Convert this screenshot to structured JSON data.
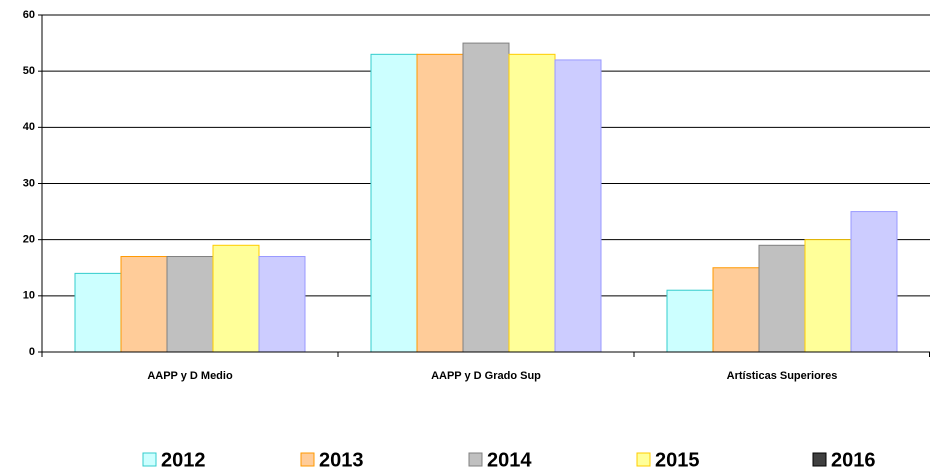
{
  "chart_data": {
    "type": "bar",
    "categories": [
      "AAPP y D Medio",
      "AAPP y D Grado Sup",
      "Artísticas Superiores"
    ],
    "series": [
      {
        "name": "2012",
        "color": "#ccffff",
        "border": "#33cccc",
        "values": [
          14,
          53,
          11
        ]
      },
      {
        "name": "2013",
        "color": "#ffcc99",
        "border": "#ff9900",
        "values": [
          17,
          53,
          15
        ]
      },
      {
        "name": "2014",
        "color": "#c0c0c0",
        "border": "#808080",
        "values": [
          17,
          55,
          19
        ]
      },
      {
        "name": "2015",
        "color": "#ffff99",
        "border": "#ffcc00",
        "values": [
          19,
          53,
          20
        ]
      },
      {
        "name": "2016",
        "color": "#ccccff",
        "border": "#9999ff",
        "legend_color": "#404040",
        "values": [
          17,
          52,
          25
        ]
      }
    ],
    "ylim": [
      0,
      60
    ],
    "yticks": [
      0,
      10,
      20,
      30,
      40,
      50,
      60
    ],
    "grid": true,
    "legend": "bottom"
  }
}
